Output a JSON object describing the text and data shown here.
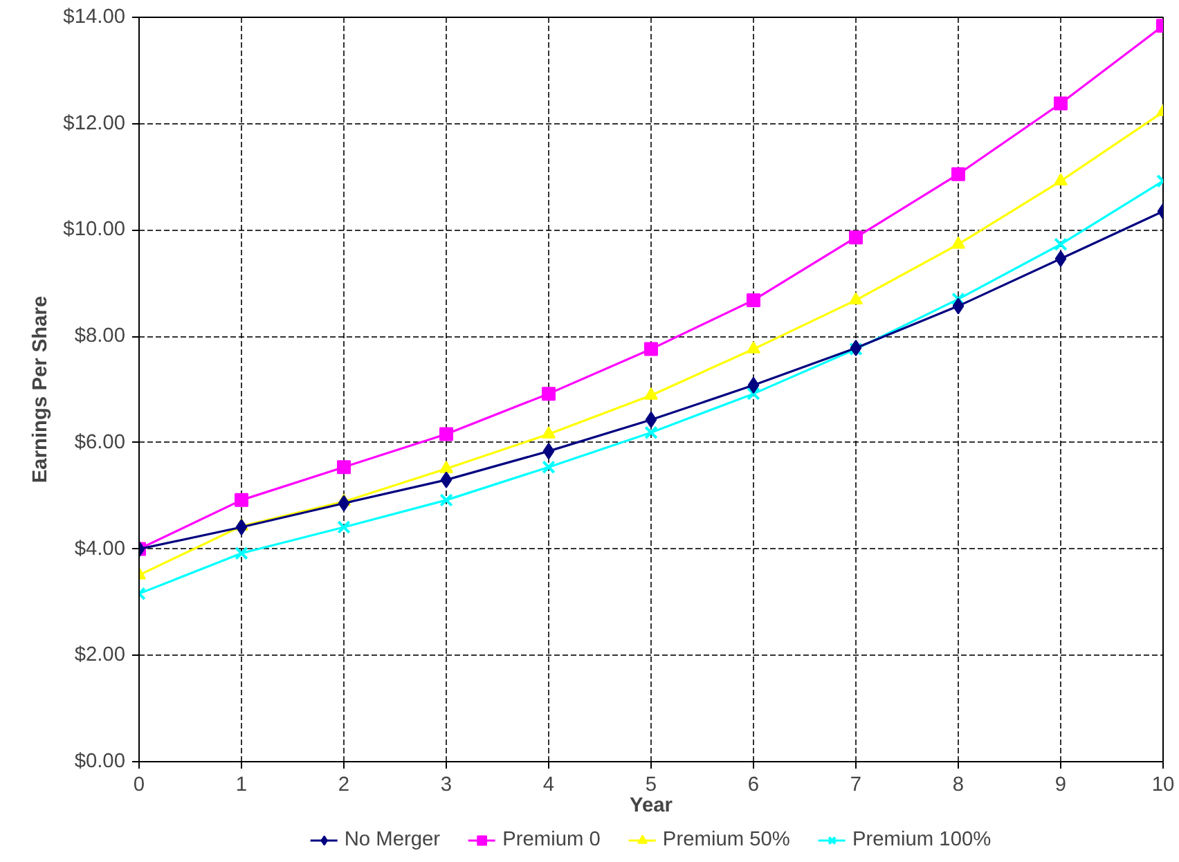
{
  "chart_data": {
    "type": "line",
    "xlabel": "Year",
    "ylabel": "Earnings Per Share",
    "x": [
      0,
      1,
      2,
      3,
      4,
      5,
      6,
      7,
      8,
      9,
      10
    ],
    "xlim": [
      0,
      10
    ],
    "xticks": [
      0,
      1,
      2,
      3,
      4,
      5,
      6,
      7,
      8,
      9,
      10
    ],
    "ylim": [
      0,
      14
    ],
    "yticks": [
      {
        "value": 0,
        "label": "$0.00"
      },
      {
        "value": 2,
        "label": "$2.00"
      },
      {
        "value": 4,
        "label": "$4.00"
      },
      {
        "value": 6,
        "label": "$6.00"
      },
      {
        "value": 8,
        "label": "$8.00"
      },
      {
        "value": 10,
        "label": "$10.00"
      },
      {
        "value": 12,
        "label": "$12.00"
      },
      {
        "value": 14,
        "label": "$14.00"
      }
    ],
    "grid": true,
    "legend": "bottom",
    "line_style": "solid",
    "series": [
      {
        "name": "No Merger",
        "color": "#000080",
        "marker": "diamond",
        "values": [
          4.0,
          4.41,
          4.86,
          5.3,
          5.84,
          6.43,
          7.08,
          7.78,
          8.57,
          9.46,
          10.35
        ]
      },
      {
        "name": "Premium 0",
        "color": "#ff00ff",
        "marker": "square",
        "values": [
          4.0,
          4.92,
          5.54,
          6.16,
          6.92,
          7.76,
          8.68,
          9.86,
          11.05,
          12.38,
          13.84
        ]
      },
      {
        "name": "Premium 50%",
        "color": "#ffff00",
        "marker": "triangle",
        "values": [
          3.51,
          4.43,
          4.89,
          5.51,
          6.16,
          6.89,
          7.76,
          8.68,
          9.73,
          10.92,
          12.22
        ]
      },
      {
        "name": "Premium 100%",
        "color": "#00ffff",
        "marker": "cross",
        "values": [
          3.16,
          3.92,
          4.41,
          4.92,
          5.54,
          6.19,
          6.92,
          7.76,
          8.7,
          9.73,
          10.92
        ]
      }
    ]
  }
}
